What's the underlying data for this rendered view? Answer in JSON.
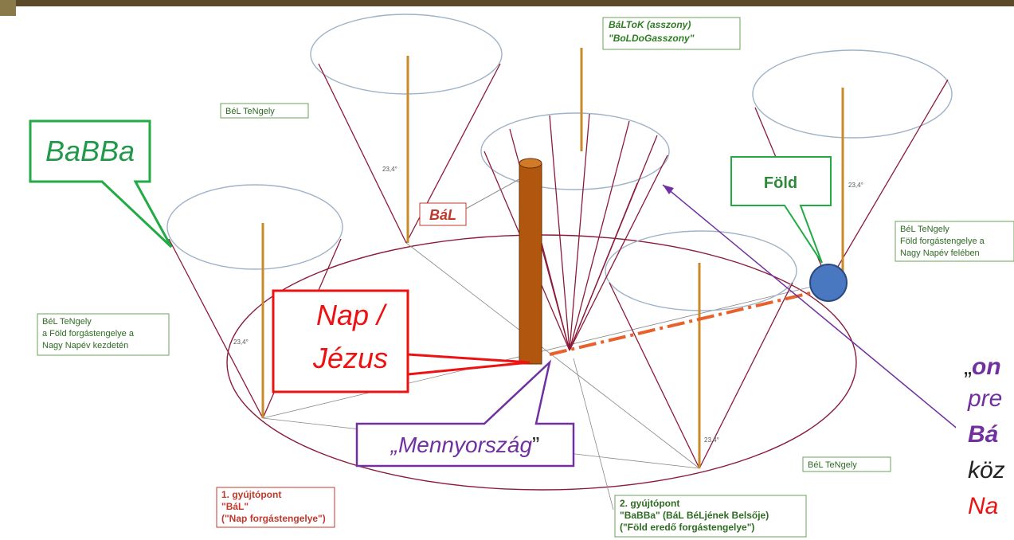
{
  "labels": {
    "top_center": [
      "BáLToK (asszony)",
      "\"BoLDoGasszony\""
    ],
    "top_left_axis": "BéL TeNgely",
    "babba": "BaBBa",
    "bal": "BáL",
    "fold": "Föld",
    "right_axis": [
      "BéL TeNgely",
      "Föld forgástengelye a",
      "Nagy Napév felében"
    ],
    "left_axis": [
      "BéL TeNgely",
      "a Föld forgástengelye a",
      "Nagy Napév kezdetén"
    ],
    "nap": [
      "Nap /",
      "Jézus"
    ],
    "mennyorszag": {
      "open": "„",
      "word": "Mennyország",
      "close": "”"
    },
    "focus1": [
      "1. gyújtópont",
      "\"BáL\"",
      "(\"Nap forgástengelye\")"
    ],
    "focus2": [
      "2. gyújtópont",
      "\"BaBBa\" (BáL BéLjének Belsője)",
      "(\"Föld eredő forgástengelye\")"
    ],
    "bottom_right_axis": "BéL TeNgely",
    "angle": "23,4°",
    "side_text": {
      "quote": "„",
      "line1": "on",
      "line2": "pre",
      "line3": "Bá",
      "line4": "köz",
      "line5": "Na"
    }
  }
}
